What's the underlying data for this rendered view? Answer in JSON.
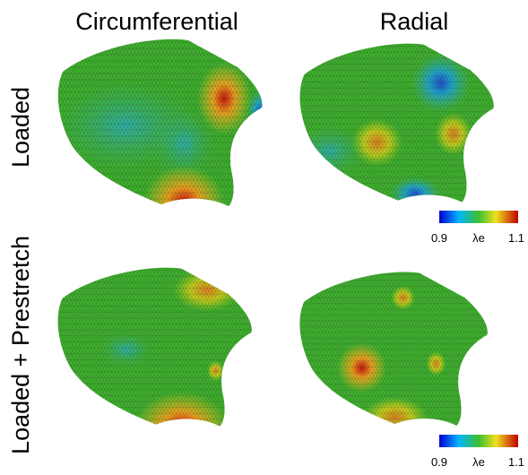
{
  "columns": [
    "Circumferential",
    "Radial"
  ],
  "rows": [
    "Loaded",
    "Loaded + Prestretch"
  ],
  "colorbars": [
    {
      "min": 0.9,
      "label": "λe",
      "max": 1.1
    },
    {
      "min": 0.9,
      "label": "λe",
      "max": 1.1
    }
  ]
}
